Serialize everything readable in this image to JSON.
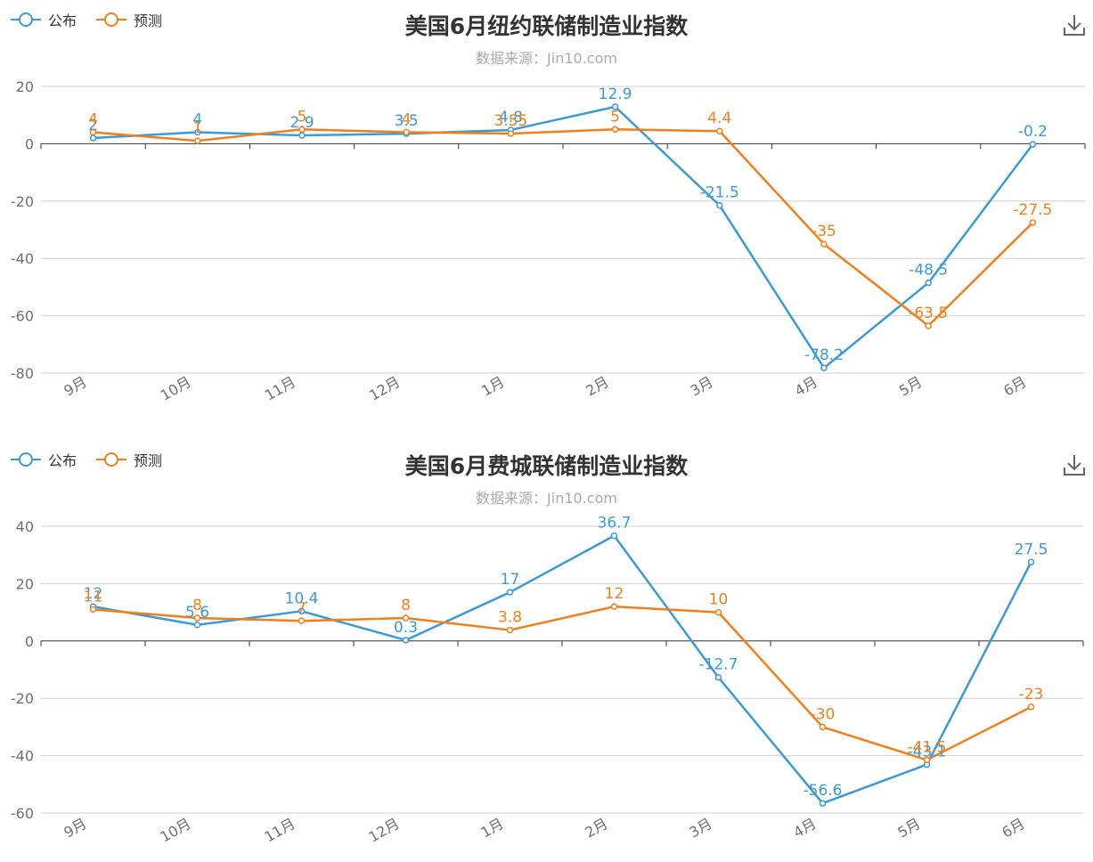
{
  "colors": {
    "published": "#3a9ad9",
    "forecast": "#f07f1c"
  },
  "icons": {
    "download": "download-icon"
  },
  "chart_data": [
    {
      "type": "line",
      "title": "美国6月纽约联储制造业指数",
      "subtitle": "数据来源：Jin10.com",
      "categories": [
        "9月",
        "10月",
        "11月",
        "12月",
        "1月",
        "2月",
        "3月",
        "4月",
        "5月",
        "6月"
      ],
      "yticks": [
        "20",
        "0",
        "-20",
        "-40",
        "-60",
        "-80"
      ],
      "ylim": [
        -80,
        20
      ],
      "legend": "top-left",
      "grid": true,
      "series": [
        {
          "name": "公布",
          "values": [
            2,
            4,
            2.9,
            3.5,
            4.8,
            12.9,
            -21.5,
            -78.2,
            -48.5,
            -0.2
          ],
          "labels": [
            "2",
            "4",
            "2.9",
            "3.5",
            "4.8",
            "12.9",
            "-21.5",
            "-78.2",
            "-48.5",
            "-0.2"
          ]
        },
        {
          "name": "预测",
          "values": [
            4,
            1,
            5,
            4,
            3.55,
            5,
            4.4,
            -35,
            -63.5,
            -27.5
          ],
          "labels": [
            "4",
            "1",
            "5",
            "4",
            "3.55",
            "5",
            "4.4",
            "-35",
            "-63.5",
            "-27.5"
          ]
        }
      ]
    },
    {
      "type": "line",
      "title": "美国6月费城联储制造业指数",
      "subtitle": "数据来源：Jin10.com",
      "categories": [
        "9月",
        "10月",
        "11月",
        "12月",
        "1月",
        "2月",
        "3月",
        "4月",
        "5月",
        "6月"
      ],
      "yticks": [
        "40",
        "20",
        "0",
        "-20",
        "-40",
        "-60"
      ],
      "ylim": [
        -60,
        40
      ],
      "legend": "top-left",
      "grid": true,
      "series": [
        {
          "name": "公布",
          "values": [
            12,
            5.6,
            10.4,
            0.3,
            17,
            36.7,
            -12.7,
            -56.6,
            -43.1,
            27.5
          ],
          "labels": [
            "12",
            "5.6",
            "10.4",
            "0.3",
            "17",
            "36.7",
            "-12.7",
            "-56.6",
            "-43.1",
            "27.5"
          ]
        },
        {
          "name": "预测",
          "values": [
            11,
            8,
            7,
            8,
            3.8,
            12,
            10,
            -30,
            -41.5,
            -23
          ],
          "labels": [
            "11",
            "8",
            "7",
            "8",
            "3.8",
            "12",
            "10",
            "-30",
            "-41.5",
            "-23"
          ]
        }
      ]
    }
  ]
}
